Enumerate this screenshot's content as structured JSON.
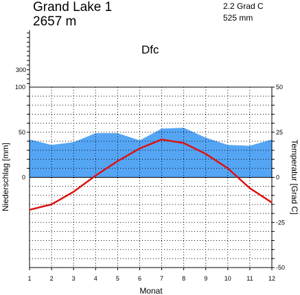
{
  "station": {
    "name": "Grand Lake 1",
    "elevation": "2657 m",
    "annual_temperature": "2.2 Grad C",
    "annual_precipitation": "525 mm",
    "climate_class": "Dfc"
  },
  "chart_data": {
    "type": "area",
    "title": "",
    "xlabel": "Monat",
    "ylabel_left": "Niederschlag [mm]",
    "ylabel_right": "Temperatur [Grad C]",
    "x": [
      1,
      2,
      3,
      4,
      5,
      6,
      7,
      8,
      9,
      10,
      11,
      12
    ],
    "x_tick_labels": [
      "1",
      "2",
      "3",
      "4",
      "5",
      "6",
      "7",
      "8",
      "9",
      "10",
      "11",
      "12"
    ],
    "xlim": [
      1,
      12
    ],
    "y_left_lim": [
      0,
      100
    ],
    "y_left_ticks": [
      "100",
      "50",
      "0"
    ],
    "y_left_upper_tick_label": "300",
    "y_right_lim": [
      -50,
      50
    ],
    "y_right_ticks": [
      "50",
      "25",
      "0",
      "-25",
      "-50"
    ],
    "grid": true,
    "series": [
      {
        "type": "area",
        "color": "#55a5f5",
        "values": [
          42,
          36,
          39,
          49,
          49,
          41,
          54,
          55,
          44,
          36,
          35,
          42
        ]
      },
      {
        "type": "line",
        "color": "#dd1111",
        "values": [
          -18,
          -15,
          -8,
          1,
          9,
          16,
          21,
          19,
          13,
          5,
          -6,
          -14
        ]
      }
    ]
  }
}
